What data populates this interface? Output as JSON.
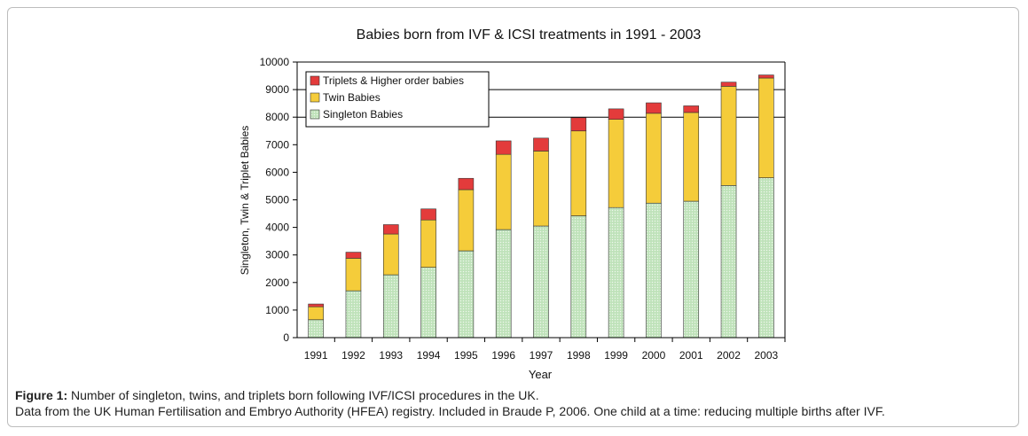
{
  "chart_data": {
    "type": "bar",
    "stacked": true,
    "title": "Babies born from IVF & ICSI treatments in 1991 - 2003",
    "xlabel": "Year",
    "ylabel": "Singleton, Twin & Triplet Babies",
    "ylim": [
      0,
      10000
    ],
    "yticks": [
      0,
      1000,
      2000,
      3000,
      4000,
      5000,
      6000,
      7000,
      8000,
      9000,
      10000
    ],
    "grid": "horizontal lines at 8000, 9000 and 10000",
    "legend_position": "top-left",
    "categories": [
      "1991",
      "1992",
      "1993",
      "1994",
      "1995",
      "1996",
      "1997",
      "1998",
      "1999",
      "2000",
      "2001",
      "2002",
      "2003"
    ],
    "series": [
      {
        "name": "Singleton Babies",
        "color": "#c5e5c0",
        "values": [
          650,
          1700,
          2280,
          2550,
          3150,
          3920,
          4050,
          4420,
          4720,
          4880,
          4950,
          5520,
          5800
        ]
      },
      {
        "name": "Twin Babies",
        "color": "#f5cc3a",
        "values": [
          470,
          1180,
          1480,
          1720,
          2220,
          2730,
          2720,
          3080,
          3200,
          3260,
          3220,
          3600,
          3620
        ]
      },
      {
        "name": "Triplets & Higher order babies",
        "color": "#e33b3b",
        "values": [
          100,
          220,
          340,
          400,
          410,
          490,
          470,
          480,
          380,
          380,
          240,
          150,
          110
        ]
      }
    ]
  },
  "caption": {
    "label": "Figure 1:",
    "line1": " Number of singleton, twins, and triplets born following IVF/ICSI procedures in the UK.",
    "line2": "Data from the UK Human Fertilisation and Embryo Authority (HFEA) registry. Included in Braude P, 2006. One child at a time: reducing multiple births after IVF."
  }
}
